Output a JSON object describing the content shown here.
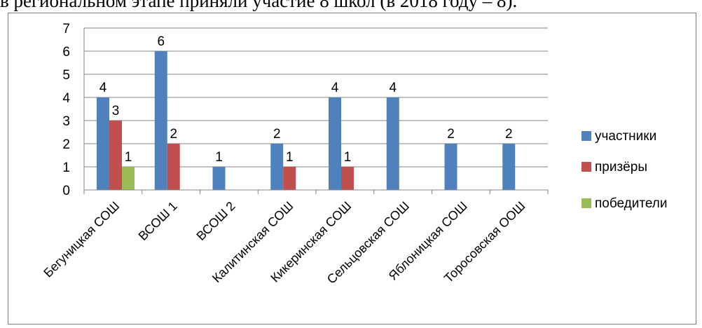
{
  "header": {
    "text": "в региональном этапе приняли участие 8 школ (в 2018 году – 8)."
  },
  "chart_data": {
    "type": "bar",
    "categories": [
      "Бегуницкая СОШ",
      "ВСОШ 1",
      "ВСОШ 2",
      "Калитинская СОШ",
      "Кикеринская СОШ",
      "Сельцовская СОШ",
      "Яблоницкая СОШ",
      "Торосовская ООШ"
    ],
    "series": [
      {
        "name": "участники",
        "color": "#4f81bd",
        "values": [
          4,
          6,
          1,
          2,
          4,
          4,
          2,
          2
        ]
      },
      {
        "name": "призёры",
        "color": "#c0504d",
        "values": [
          3,
          2,
          0,
          1,
          1,
          0,
          0,
          0
        ]
      },
      {
        "name": "победители",
        "color": "#9bbb59",
        "values": [
          1,
          0,
          0,
          0,
          0,
          0,
          0,
          0
        ]
      }
    ],
    "ylim": [
      0,
      7
    ],
    "yticks": [
      "0",
      "1",
      "2",
      "3",
      "4",
      "5",
      "6",
      "7"
    ],
    "grid": true,
    "legend": "right"
  }
}
